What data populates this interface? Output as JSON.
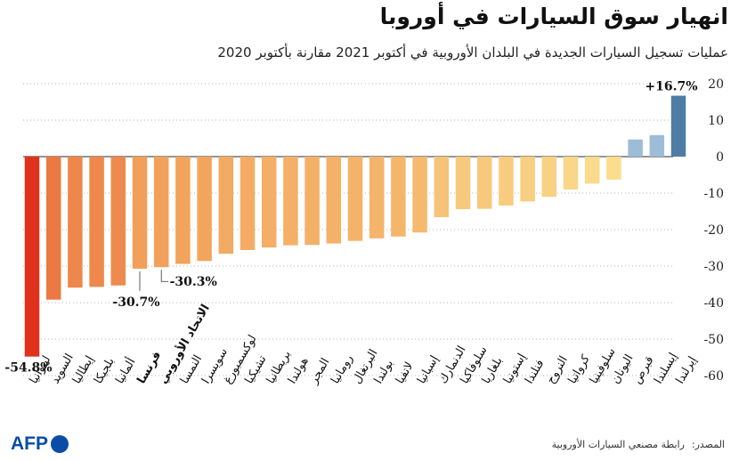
{
  "title": "انهيار سوق السيارات في أوروبا",
  "subtitle": "عمليات تسجيل السيارات الجديدة في البلدان الأوروبية في أكتوبر 2021 مقارنة بأكتوبر 2020",
  "source": {
    "label": "المصدر:",
    "text": "رابطة مصنعي السيارات الأوروبية"
  },
  "logo": {
    "text": "AFP"
  },
  "chart_data": {
    "type": "bar",
    "ylim": [
      -60,
      20
    ],
    "yticks": [
      20,
      10,
      0,
      -10,
      -20,
      -30,
      -40,
      -50,
      -60
    ],
    "grid": true,
    "categories": [
      "ليتوانيا",
      "السويد",
      "إيطاليا",
      "بلجيكا",
      "ألمانيا",
      "فرنسا",
      "الاتحاد الأوروبي",
      "النمسا",
      "سويسرا",
      "لوكسمبورغ",
      "تشيكيا",
      "بريطانيا",
      "هولندا",
      "المجر",
      "رومانيا",
      "البرتغال",
      "بولندا",
      "لاتفيا",
      "إسبانيا",
      "الدنمارك",
      "سلوفاكيا",
      "بلغاريا",
      "إستونيا",
      "فنلندا",
      "النروج",
      "كرواتيا",
      "سلوفينيا",
      "اليونان",
      "قبرص",
      "إيسلندا",
      "إيرلندا"
    ],
    "values": [
      -54.8,
      -39.2,
      -35.9,
      -35.7,
      -35.3,
      -30.7,
      -30.3,
      -29.4,
      -28.6,
      -26.6,
      -25.6,
      -24.9,
      -24.3,
      -24.2,
      -23.8,
      -23.1,
      -22.4,
      -21.9,
      -20.8,
      -16.6,
      -14.4,
      -14.3,
      -13.4,
      -12.3,
      -11.0,
      -9.0,
      -7.4,
      -6.3,
      4.7,
      5.9,
      16.7
    ],
    "bold_categories": [
      "فرنسا",
      "الاتحاد الأوروبي"
    ],
    "two_line_categories": {
      "إيسلندا": [
        "إيسلندا",
        "إيرلندا"
      ]
    },
    "labels": [
      {
        "category": "ليتوانيا",
        "text": "-54.8%"
      },
      {
        "category": "فرنسا",
        "text": "-30.7%"
      },
      {
        "category": "الاتحاد الأوروبي",
        "text": "-30.3%"
      },
      {
        "category": "إيرلندا",
        "text": "+16.7%"
      }
    ]
  }
}
